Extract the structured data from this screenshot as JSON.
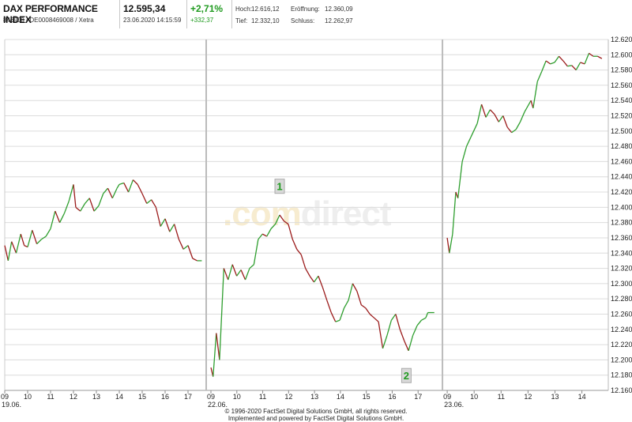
{
  "header": {
    "title": "DAX PERFORMANCE INDEX",
    "subtitle": "846900 / DE0008469008 / Xetra",
    "price": "12.595,34",
    "datetime": "23.06.2020 14:15:59",
    "change_pct": "+2,71%",
    "change_abs": "+332,37",
    "high_label": "Hoch:",
    "high_value": "12.616,12",
    "low_label": "Tief:",
    "low_value": "12.332,10",
    "open_label": "Eröffnung:",
    "open_value": "12.360,09",
    "close_label": "Schluss:",
    "close_value": "12.262,97"
  },
  "watermark": {
    "part1": ".com",
    "part2": "direct"
  },
  "footer": {
    "line1": "© 1996-2020 FactSet Digital Solutions GmbH, all rights reserved.",
    "line2": "Implemented and powered by FactSet Digital Solutions GmbH."
  },
  "colors": {
    "up": "#2e9e2e",
    "down": "#9b1b1b",
    "grid": "#dcdcdc",
    "marker_bg": "#d9d9d9",
    "marker_text": "#1f9a1f"
  },
  "chart_data": {
    "type": "line",
    "ylim": [
      12160,
      12620
    ],
    "yticks": [
      12160,
      12180,
      12200,
      12220,
      12240,
      12260,
      12280,
      12300,
      12320,
      12340,
      12360,
      12380,
      12400,
      12420,
      12440,
      12460,
      12480,
      12500,
      12520,
      12540,
      12560,
      12580,
      12600,
      12620
    ],
    "ytick_labels": [
      "12.160",
      "12.180",
      "12.200",
      "12.220",
      "12.240",
      "12.260",
      "12.280",
      "12.300",
      "12.320",
      "12.340",
      "12.360",
      "12.380",
      "12.400",
      "12.420",
      "12.440",
      "12.460",
      "12.480",
      "12.500",
      "12.520",
      "12.540",
      "12.560",
      "12.580",
      "12.600",
      "12.620"
    ],
    "xticks": [
      {
        "label": "09",
        "t": 0
      },
      {
        "label": "10",
        "t": 1
      },
      {
        "label": "11",
        "t": 2
      },
      {
        "label": "12",
        "t": 3
      },
      {
        "label": "13",
        "t": 4
      },
      {
        "label": "14",
        "t": 5
      },
      {
        "label": "15",
        "t": 6
      },
      {
        "label": "16",
        "t": 7
      },
      {
        "label": "17",
        "t": 8
      },
      {
        "label": "09",
        "t": 9
      },
      {
        "label": "10",
        "t": 10
      },
      {
        "label": "11",
        "t": 11
      },
      {
        "label": "12",
        "t": 12
      },
      {
        "label": "13",
        "t": 13
      },
      {
        "label": "14",
        "t": 14
      },
      {
        "label": "15",
        "t": 15
      },
      {
        "label": "16",
        "t": 16
      },
      {
        "label": "17",
        "t": 17
      },
      {
        "label": "09",
        "t": 18
      },
      {
        "label": "10",
        "t": 19
      },
      {
        "label": "11",
        "t": 20
      },
      {
        "label": "12",
        "t": 21
      },
      {
        "label": "13",
        "t": 22
      },
      {
        "label": "14",
        "t": 23
      }
    ],
    "dates": [
      {
        "label": "19.06.",
        "t": 0
      },
      {
        "label": "22.06.",
        "t": 9
      },
      {
        "label": "23.06.",
        "t": 18
      }
    ],
    "session_separators": [
      9,
      18
    ],
    "series": [
      {
        "values": [
          [
            0,
            12350
          ],
          [
            0.15,
            12330
          ],
          [
            0.3,
            12355
          ],
          [
            0.5,
            12340
          ],
          [
            0.7,
            12365
          ],
          [
            0.85,
            12350
          ],
          [
            1,
            12348
          ],
          [
            1.2,
            12370
          ],
          [
            1.4,
            12352
          ],
          [
            1.6,
            12358
          ],
          [
            1.8,
            12362
          ],
          [
            2,
            12372
          ],
          [
            2.2,
            12395
          ],
          [
            2.4,
            12380
          ],
          [
            2.6,
            12392
          ],
          [
            2.8,
            12408
          ],
          [
            3,
            12430
          ],
          [
            3.1,
            12400
          ],
          [
            3.3,
            12395
          ],
          [
            3.5,
            12405
          ],
          [
            3.7,
            12412
          ],
          [
            3.9,
            12395
          ],
          [
            4.1,
            12402
          ],
          [
            4.3,
            12418
          ],
          [
            4.5,
            12425
          ],
          [
            4.7,
            12412
          ],
          [
            4.9,
            12425
          ],
          [
            5,
            12430
          ],
          [
            5.2,
            12432
          ],
          [
            5.4,
            12420
          ],
          [
            5.6,
            12436
          ],
          [
            5.8,
            12430
          ],
          [
            6,
            12418
          ],
          [
            6.2,
            12405
          ],
          [
            6.4,
            12410
          ],
          [
            6.6,
            12400
          ],
          [
            6.8,
            12375
          ],
          [
            7,
            12385
          ],
          [
            7.2,
            12368
          ],
          [
            7.4,
            12378
          ],
          [
            7.6,
            12358
          ],
          [
            7.8,
            12345
          ],
          [
            8,
            12350
          ],
          [
            8.2,
            12333
          ],
          [
            8.4,
            12330
          ],
          [
            8.6,
            12330
          ]
        ]
      },
      {
        "values": [
          [
            9,
            12190
          ],
          [
            9.1,
            12178
          ],
          [
            9.25,
            12235
          ],
          [
            9.4,
            12200
          ],
          [
            9.6,
            12320
          ],
          [
            9.8,
            12305
          ],
          [
            10,
            12325
          ],
          [
            10.2,
            12310
          ],
          [
            10.4,
            12318
          ],
          [
            10.6,
            12305
          ],
          [
            10.8,
            12320
          ],
          [
            11,
            12325
          ],
          [
            11.2,
            12358
          ],
          [
            11.4,
            12365
          ],
          [
            11.6,
            12362
          ],
          [
            11.8,
            12372
          ],
          [
            12,
            12378
          ],
          [
            12.2,
            12390
          ],
          [
            12.4,
            12382
          ],
          [
            12.6,
            12378
          ],
          [
            12.8,
            12358
          ],
          [
            13,
            12345
          ],
          [
            13.2,
            12338
          ],
          [
            13.4,
            12320
          ],
          [
            13.6,
            12310
          ],
          [
            13.8,
            12302
          ],
          [
            14,
            12310
          ],
          [
            14.2,
            12295
          ],
          [
            14.4,
            12278
          ],
          [
            14.6,
            12262
          ],
          [
            14.8,
            12250
          ],
          [
            15,
            12252
          ],
          [
            15.2,
            12268
          ],
          [
            15.4,
            12278
          ],
          [
            15.6,
            12300
          ],
          [
            15.8,
            12290
          ],
          [
            16,
            12272
          ],
          [
            16.2,
            12268
          ],
          [
            16.4,
            12260
          ],
          [
            16.6,
            12255
          ],
          [
            16.8,
            12250
          ],
          [
            17,
            12215
          ],
          [
            17.2,
            12232
          ],
          [
            17.4,
            12252
          ],
          [
            17.6,
            12260
          ],
          [
            17.8,
            12240
          ],
          [
            18,
            12225
          ],
          [
            18.2,
            12212
          ],
          [
            18.4,
            12232
          ],
          [
            18.6,
            12245
          ],
          [
            18.8,
            12252
          ],
          [
            19,
            12255
          ],
          [
            19.1,
            12262
          ],
          [
            19.4,
            12262
          ]
        ]
      },
      {
        "values": [
          [
            20.6,
            12360
          ],
          [
            20.7,
            12340
          ],
          [
            20.85,
            12365
          ],
          [
            21,
            12420
          ],
          [
            21.1,
            12412
          ],
          [
            21.3,
            12460
          ],
          [
            21.5,
            12480
          ],
          [
            21.7,
            12492
          ],
          [
            22,
            12510
          ],
          [
            22.2,
            12535
          ],
          [
            22.4,
            12518
          ],
          [
            22.6,
            12528
          ],
          [
            22.8,
            12522
          ],
          [
            23,
            12512
          ],
          [
            23.2,
            12520
          ],
          [
            23.4,
            12505
          ],
          [
            23.6,
            12498
          ],
          [
            23.8,
            12502
          ],
          [
            24,
            12512
          ],
          [
            24.2,
            12525
          ],
          [
            24.5,
            12540
          ],
          [
            24.6,
            12530
          ],
          [
            24.8,
            12565
          ],
          [
            25,
            12578
          ],
          [
            25.2,
            12592
          ],
          [
            25.4,
            12588
          ],
          [
            25.6,
            12590
          ],
          [
            25.8,
            12598
          ],
          [
            26,
            12592
          ],
          [
            26.2,
            12585
          ],
          [
            26.4,
            12586
          ],
          [
            26.6,
            12580
          ],
          [
            26.8,
            12590
          ],
          [
            27,
            12588
          ],
          [
            27.2,
            12602
          ],
          [
            27.4,
            12598
          ],
          [
            27.6,
            12598
          ],
          [
            27.8,
            12595
          ]
        ]
      }
    ],
    "annotations": [
      {
        "label": "1",
        "t": 12.2,
        "value": 12410,
        "position": "above"
      },
      {
        "label": "2",
        "t": 18.1,
        "value": 12195,
        "position": "below"
      }
    ]
  }
}
